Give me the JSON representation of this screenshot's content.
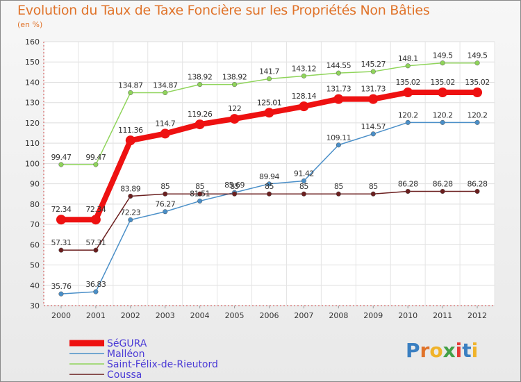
{
  "header": {
    "title": "Evolution du Taux de Taxe Foncière sur les Propriétés Non Bâties",
    "unit": "(en %)"
  },
  "logo": {
    "chars": [
      "P",
      "r",
      "o",
      "x",
      "i",
      "t",
      "i"
    ],
    "colors": [
      "#3a7fc1",
      "#e0732a",
      "#f0b32a",
      "#43a047",
      "#e53935",
      "#3a7fc1",
      "#f0b32a"
    ]
  },
  "chart_data": {
    "type": "line",
    "title": "Evolution du Taux de Taxe Foncière sur les Propriétés Non Bâties",
    "ylabel": "(en %)",
    "xlabel": "",
    "x": [
      "2000",
      "2001",
      "2002",
      "2003",
      "2004",
      "2005",
      "2006",
      "2007",
      "2008",
      "2009",
      "2010",
      "2011",
      "2012"
    ],
    "ylim": [
      30,
      160
    ],
    "yticks": [
      30,
      40,
      50,
      60,
      70,
      80,
      90,
      100,
      110,
      120,
      130,
      140,
      150,
      160
    ],
    "grid": true,
    "legend": "bottom-left",
    "series": [
      {
        "name": "SéGURA",
        "color": "#ee1111",
        "emph": true,
        "values": [
          72.34,
          72.34,
          111.36,
          114.7,
          119.26,
          122,
          125.01,
          128.14,
          131.73,
          131.73,
          135.02,
          135.02,
          135.02
        ],
        "labels": [
          "72.34",
          "72.34",
          "111.36",
          "114.7",
          "119.26",
          "122",
          "125.01",
          "128.14",
          "131.73",
          "131.73",
          "135.02",
          "135.02",
          "135.02"
        ]
      },
      {
        "name": "Malléon",
        "color": "#4a8fc8",
        "values": [
          35.76,
          36.83,
          72.23,
          76.27,
          81.51,
          85.69,
          89.94,
          91.42,
          109.11,
          114.57,
          120.2,
          120.2,
          120.2
        ],
        "labels": [
          "35.76",
          "36.83",
          "72.23",
          "76.27",
          "81.51",
          "85.69",
          "89.94",
          "91.42",
          "109.11",
          "114.57",
          "120.2",
          "120.2",
          "120.2"
        ]
      },
      {
        "name": "Saint-Félix-de-Rieutord",
        "color": "#8fd45a",
        "values": [
          99.47,
          99.47,
          134.87,
          134.87,
          138.92,
          138.92,
          141.7,
          143.12,
          144.55,
          145.27,
          148.1,
          149.5,
          149.5
        ],
        "labels": [
          "99.47",
          "99.47",
          "134.87",
          "134.87",
          "138.92",
          "138.92",
          "141.7",
          "143.12",
          "144.55",
          "145.27",
          "148.1",
          "149.5",
          "149.5"
        ]
      },
      {
        "name": "Coussa",
        "color": "#6b1f1f",
        "values": [
          57.31,
          57.31,
          83.89,
          85,
          85,
          85,
          85,
          85,
          85,
          85,
          86.28,
          86.28,
          86.28
        ],
        "labels": [
          "57.31",
          "57.31",
          "83.89",
          "85",
          "85",
          "85",
          "85",
          "85",
          "85",
          "85",
          "86.28",
          "86.28",
          "86.28"
        ]
      }
    ]
  }
}
